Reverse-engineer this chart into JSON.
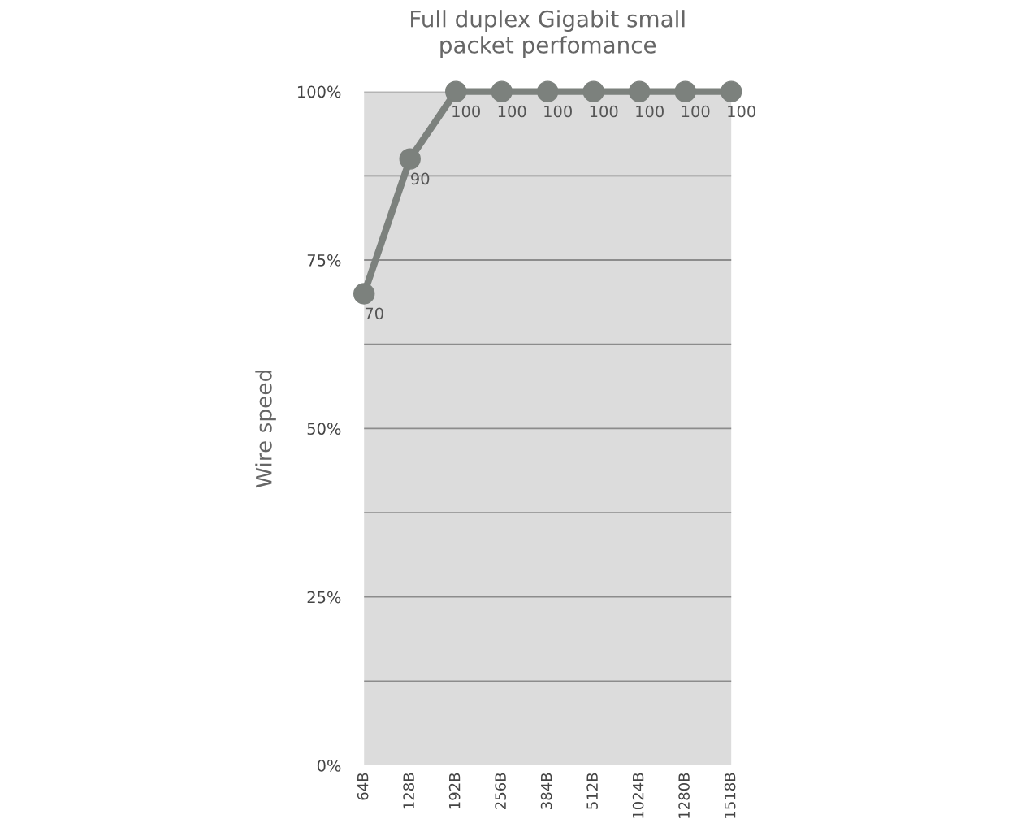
{
  "chart_data": {
    "type": "line",
    "title": "Full duplex Gigabit small\npacket perfomance",
    "ylabel": "Wire speed",
    "categories": [
      "64B",
      "128B",
      "192B",
      "256B",
      "384B",
      "512B",
      "1024B",
      "1280B",
      "1518B"
    ],
    "series": [
      {
        "color": "#7c817d",
        "values": [
          70,
          90,
          100,
          100,
          100,
          100,
          100,
          100,
          100
        ]
      }
    ],
    "ylim": [
      0,
      100
    ],
    "yticks": [
      {
        "value": 0,
        "label": "0%"
      },
      {
        "value": 12.5,
        "label": null
      },
      {
        "value": 25,
        "label": "25%"
      },
      {
        "value": 37.5,
        "label": null
      },
      {
        "value": 50,
        "label": "50%"
      },
      {
        "value": 62.5,
        "label": null
      },
      {
        "value": 75,
        "label": "75%"
      },
      {
        "value": 87.5,
        "label": null
      },
      {
        "value": 100,
        "label": "100%"
      }
    ],
    "grid": "y",
    "marker": "circle",
    "line_style": "solid",
    "data_labels": true
  }
}
